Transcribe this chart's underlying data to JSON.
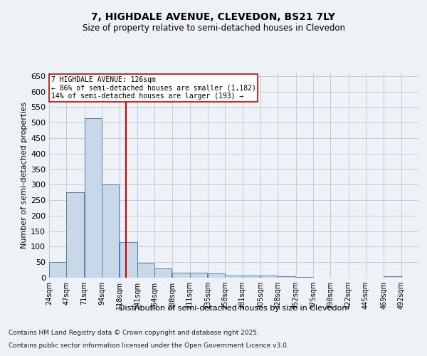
{
  "title_line1": "7, HIGHDALE AVENUE, CLEVEDON, BS21 7LY",
  "title_line2": "Size of property relative to semi-detached houses in Clevedon",
  "xlabel": "Distribution of semi-detached houses by size in Clevedon",
  "ylabel": "Number of semi-detached properties",
  "footer_line1": "Contains HM Land Registry data © Crown copyright and database right 2025.",
  "footer_line2": "Contains public sector information licensed under the Open Government Licence v3.0.",
  "bin_labels": [
    "24sqm",
    "47sqm",
    "71sqm",
    "94sqm",
    "118sqm",
    "141sqm",
    "164sqm",
    "188sqm",
    "211sqm",
    "235sqm",
    "258sqm",
    "281sqm",
    "305sqm",
    "328sqm",
    "352sqm",
    "375sqm",
    "398sqm",
    "422sqm",
    "445sqm",
    "469sqm",
    "492sqm"
  ],
  "bin_edges": [
    24,
    47,
    71,
    94,
    118,
    141,
    164,
    188,
    211,
    235,
    258,
    281,
    305,
    328,
    352,
    375,
    398,
    422,
    445,
    469,
    492
  ],
  "bar_values": [
    50,
    275,
    515,
    300,
    115,
    45,
    30,
    15,
    15,
    13,
    8,
    8,
    6,
    5,
    3,
    0,
    0,
    0,
    0,
    5
  ],
  "bar_color": "#c8d8e8",
  "bar_edge_color": "#5080b0",
  "vline_x": 126,
  "vline_color": "#cc0000",
  "annotation_title": "7 HIGHDALE AVENUE: 126sqm",
  "annotation_line1": "← 86% of semi-detached houses are smaller (1,182)",
  "annotation_line2": "14% of semi-detached houses are larger (193) →",
  "annotation_box_color": "#ffffff",
  "annotation_box_edge": "#cc0000",
  "ylim": [
    0,
    660
  ],
  "yticks": [
    0,
    50,
    100,
    150,
    200,
    250,
    300,
    350,
    400,
    450,
    500,
    550,
    600,
    650
  ],
  "background_color": "#eef2f6",
  "plot_bg_color": "#eef2f6"
}
